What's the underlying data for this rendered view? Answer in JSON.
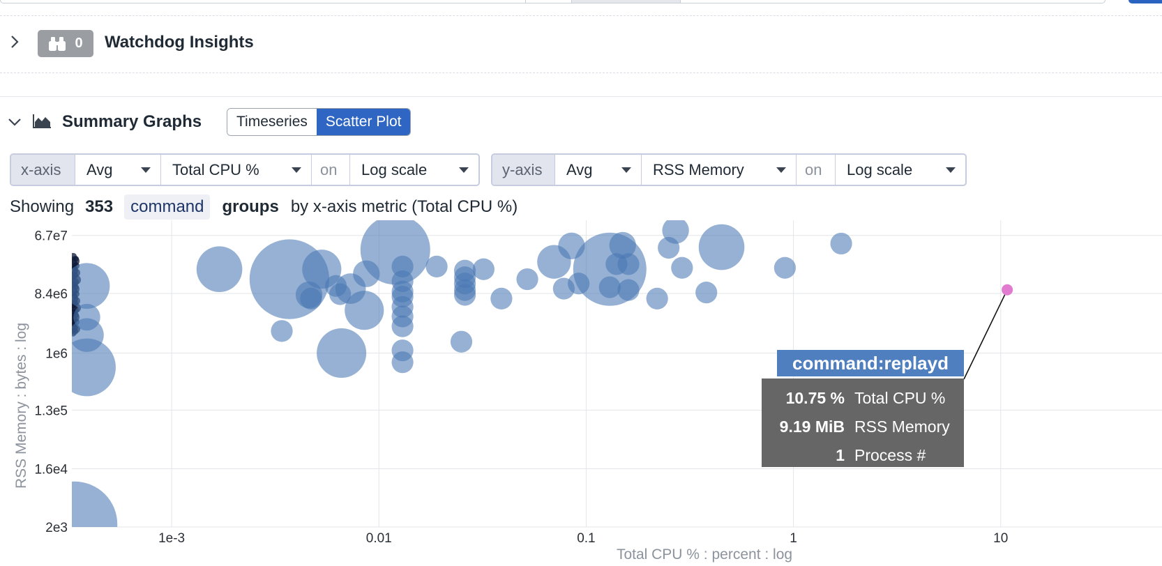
{
  "watchdog": {
    "count": "0",
    "title": "Watchdog Insights"
  },
  "summary": {
    "title": "Summary Graphs",
    "tabs": [
      {
        "label": "Timeseries",
        "active": false
      },
      {
        "label": "Scatter Plot",
        "active": true
      }
    ]
  },
  "xaxis_ctrl": {
    "label": "x-axis",
    "agg": "Avg",
    "metric": "Total CPU %",
    "on": "on",
    "scale": "Log scale"
  },
  "yaxis_ctrl": {
    "label": "y-axis",
    "agg": "Avg",
    "metric": "RSS Memory",
    "on": "on",
    "scale": "Log scale"
  },
  "showing": {
    "prefix": "Showing",
    "count": "353",
    "tag": "command",
    "groups": "groups",
    "suffix": "by x-axis metric (Total CPU %)"
  },
  "tooltip": {
    "title": "command:replayd",
    "rows": [
      {
        "value": "10.75 %",
        "name": "Total CPU %"
      },
      {
        "value": "9.19 MiB",
        "name": "RSS Memory"
      },
      {
        "value": "1",
        "name": "Process #"
      }
    ]
  },
  "colors": {
    "accent": "#2f66c3",
    "point": "#4a78b3",
    "highlight": "#e07bd0",
    "tooltip_title": "#4f7fbf",
    "tooltip_body": "#666666"
  },
  "chart_data": {
    "type": "scatter",
    "xlabel": "Total CPU % : percent : log",
    "ylabel": "RSS Memory : bytes : log",
    "x_scale": "log",
    "y_scale": "log",
    "x_ticks": [
      {
        "value": 0.001,
        "label": "1e-3"
      },
      {
        "value": 0.01,
        "label": "0.01"
      },
      {
        "value": 0.1,
        "label": "0.1"
      },
      {
        "value": 1,
        "label": "1"
      },
      {
        "value": 10,
        "label": "10"
      }
    ],
    "y_ticks": [
      {
        "value": 2000,
        "label": "2e3"
      },
      {
        "value": 16000,
        "label": "1.6e4"
      },
      {
        "value": 130000,
        "label": "1.3e5"
      },
      {
        "value": 1000000,
        "label": "1e6"
      },
      {
        "value": 8400000,
        "label": "8.4e6"
      },
      {
        "value": 67000000,
        "label": "6.7e7"
      }
    ],
    "xlim": [
      0.00033,
      60
    ],
    "ylim": [
      2000,
      115000000
    ],
    "grid": true,
    "highlight": {
      "name": "command:replayd",
      "x": 10.75,
      "y": 9600000,
      "processes": 1
    },
    "points": [
      {
        "x": 0.00039,
        "y": 3600000,
        "s": 2
      },
      {
        "x": 0.00039,
        "y": 1900000,
        "s": 4
      },
      {
        "x": 0.00039,
        "y": 600000,
        "s": 16
      },
      {
        "x": 0.00039,
        "y": 11000000,
        "s": 9
      },
      {
        "x": 0.00034,
        "y": 2200,
        "s": 40
      },
      {
        "x": 0.0017,
        "y": 20000000,
        "s": 9
      },
      {
        "x": 0.0037,
        "y": 14000000,
        "s": 34
      },
      {
        "x": 0.0034,
        "y": 2200000,
        "s": 1
      },
      {
        "x": 0.0046,
        "y": 8000000,
        "s": 2
      },
      {
        "x": 0.0047,
        "y": 7000000,
        "s": 1
      },
      {
        "x": 0.0053,
        "y": 20000000,
        "s": 6
      },
      {
        "x": 0.0062,
        "y": 11000000,
        "s": 1
      },
      {
        "x": 0.0065,
        "y": 8200000,
        "s": 1
      },
      {
        "x": 0.0066,
        "y": 1000000,
        "s": 11
      },
      {
        "x": 0.0073,
        "y": 10000000,
        "s": 3
      },
      {
        "x": 0.0085,
        "y": 4600000,
        "s": 6
      },
      {
        "x": 0.0087,
        "y": 17000000,
        "s": 2
      },
      {
        "x": 0.012,
        "y": 40000000,
        "s": 25
      },
      {
        "x": 0.013,
        "y": 22000000,
        "s": 1
      },
      {
        "x": 0.013,
        "y": 13000000,
        "s": 1
      },
      {
        "x": 0.013,
        "y": 9000000,
        "s": 1
      },
      {
        "x": 0.013,
        "y": 7500000,
        "s": 1
      },
      {
        "x": 0.013,
        "y": 5200000,
        "s": 1
      },
      {
        "x": 0.013,
        "y": 3700000,
        "s": 1
      },
      {
        "x": 0.013,
        "y": 2600000,
        "s": 1
      },
      {
        "x": 0.013,
        "y": 1100000,
        "s": 1
      },
      {
        "x": 0.013,
        "y": 720000,
        "s": 1
      },
      {
        "x": 0.019,
        "y": 22000000,
        "s": 1
      },
      {
        "x": 0.025,
        "y": 1500000,
        "s": 1
      },
      {
        "x": 0.026,
        "y": 19000000,
        "s": 1
      },
      {
        "x": 0.026,
        "y": 15000000,
        "s": 1
      },
      {
        "x": 0.026,
        "y": 12000000,
        "s": 1
      },
      {
        "x": 0.026,
        "y": 9500000,
        "s": 1
      },
      {
        "x": 0.026,
        "y": 8000000,
        "s": 1
      },
      {
        "x": 0.032,
        "y": 20000000,
        "s": 1
      },
      {
        "x": 0.039,
        "y": 7000000,
        "s": 1
      },
      {
        "x": 0.052,
        "y": 14000000,
        "s": 1
      },
      {
        "x": 0.07,
        "y": 26000000,
        "s": 4
      },
      {
        "x": 0.078,
        "y": 10000000,
        "s": 1
      },
      {
        "x": 0.085,
        "y": 46000000,
        "s": 2
      },
      {
        "x": 0.092,
        "y": 12000000,
        "s": 1
      },
      {
        "x": 0.13,
        "y": 20000000,
        "s": 28
      },
      {
        "x": 0.13,
        "y": 10500000,
        "s": 1
      },
      {
        "x": 0.14,
        "y": 24000000,
        "s": 1
      },
      {
        "x": 0.15,
        "y": 47000000,
        "s": 2
      },
      {
        "x": 0.16,
        "y": 9500000,
        "s": 1
      },
      {
        "x": 0.16,
        "y": 24000000,
        "s": 1
      },
      {
        "x": 0.22,
        "y": 7000000,
        "s": 1
      },
      {
        "x": 0.25,
        "y": 43000000,
        "s": 1
      },
      {
        "x": 0.27,
        "y": 80000000,
        "s": 2
      },
      {
        "x": 0.29,
        "y": 21000000,
        "s": 1
      },
      {
        "x": 0.38,
        "y": 8700000,
        "s": 1
      },
      {
        "x": 0.45,
        "y": 44000000,
        "s": 9
      },
      {
        "x": 0.91,
        "y": 21000000,
        "s": 1
      },
      {
        "x": 1.7,
        "y": 50000000,
        "s": 1
      }
    ]
  }
}
